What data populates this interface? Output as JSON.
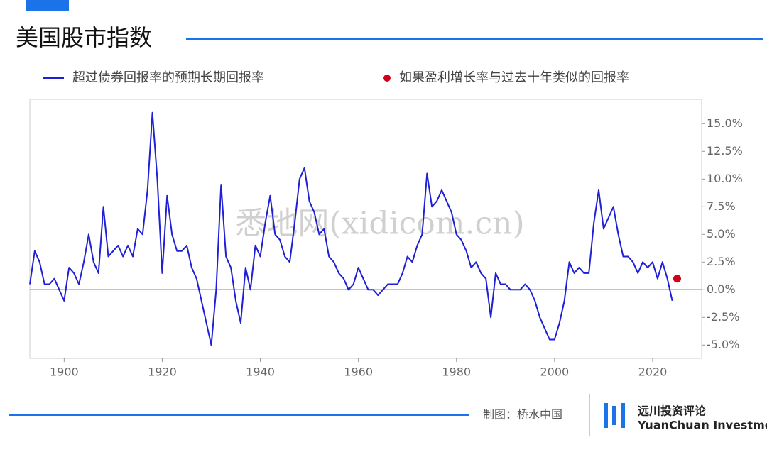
{
  "title": "美国股市指数",
  "watermark": "悉地网(xidicom.cn)",
  "footer": {
    "credit": "制图：桥水中国",
    "brand": "远川投资评论",
    "brand_en": "YuanChuan Investment Review"
  },
  "chart_data": {
    "type": "line",
    "xlim": [
      1893,
      2030
    ],
    "xticks": [
      1900,
      1920,
      1940,
      1960,
      1980,
      2000,
      2020
    ],
    "ylim": [
      -6.2,
      17.2
    ],
    "yticks": [
      {
        "value": -5,
        "label": "-5.0%"
      },
      {
        "value": -2.5,
        "label": "-2.5%"
      },
      {
        "value": 0,
        "label": "0.0%"
      },
      {
        "value": 2.5,
        "label": "2.5%"
      },
      {
        "value": 5,
        "label": "5.0%"
      },
      {
        "value": 7.5,
        "label": "7.5%"
      },
      {
        "value": 10,
        "label": "10.0%"
      },
      {
        "value": 12.5,
        "label": "12.5%"
      },
      {
        "value": 15,
        "label": "15.0%"
      }
    ],
    "series": [
      {
        "name": "超过债券回报率的预期长期回报率",
        "color": "#1f1fd6",
        "style": "line",
        "x": [
          1893,
          1894,
          1895,
          1896,
          1897,
          1898,
          1899,
          1900,
          1901,
          1902,
          1903,
          1904,
          1905,
          1906,
          1907,
          1908,
          1909,
          1910,
          1911,
          1912,
          1913,
          1914,
          1915,
          1916,
          1917,
          1918,
          1919,
          1920,
          1921,
          1922,
          1923,
          1924,
          1925,
          1926,
          1927,
          1928,
          1929,
          1930,
          1931,
          1932,
          1933,
          1934,
          1935,
          1936,
          1937,
          1938,
          1939,
          1940,
          1941,
          1942,
          1943,
          1944,
          1945,
          1946,
          1947,
          1948,
          1949,
          1950,
          1951,
          1952,
          1953,
          1954,
          1955,
          1956,
          1957,
          1958,
          1959,
          1960,
          1961,
          1962,
          1963,
          1964,
          1965,
          1966,
          1967,
          1968,
          1969,
          1970,
          1971,
          1972,
          1973,
          1974,
          1975,
          1976,
          1977,
          1978,
          1979,
          1980,
          1981,
          1982,
          1983,
          1984,
          1985,
          1986,
          1987,
          1988,
          1989,
          1990,
          1991,
          1992,
          1993,
          1994,
          1995,
          1996,
          1997,
          1998,
          1999,
          2000,
          2001,
          2002,
          2003,
          2004,
          2005,
          2006,
          2007,
          2008,
          2009,
          2010,
          2011,
          2012,
          2013,
          2014,
          2015,
          2016,
          2017,
          2018,
          2019,
          2020,
          2021,
          2022,
          2023,
          2024
        ],
        "values": [
          0.5,
          3.5,
          2.5,
          0.5,
          0.5,
          1,
          0,
          -1,
          2,
          1.5,
          0.5,
          2.5,
          5,
          2.5,
          1.5,
          7.5,
          3,
          3.5,
          4,
          3,
          4,
          3,
          5.5,
          5,
          9,
          16,
          10,
          1.5,
          8.5,
          5,
          3.5,
          3.5,
          4,
          2,
          1,
          -1,
          -3,
          -5,
          0,
          9.5,
          3,
          2,
          -1,
          -3,
          2,
          0,
          4,
          3,
          6,
          8.5,
          5,
          4.5,
          3,
          2.5,
          6,
          10,
          11,
          8,
          7,
          5,
          5.5,
          3,
          2.5,
          1.5,
          1,
          0,
          0.5,
          2,
          1,
          0,
          0,
          -0.5,
          0,
          0.5,
          0.5,
          0.5,
          1.5,
          3,
          2.5,
          4,
          5,
          10.5,
          7.5,
          8,
          9,
          8,
          7,
          5,
          4.5,
          3.5,
          2,
          2.5,
          1.5,
          1,
          -2.5,
          1.5,
          0.5,
          0.5,
          0,
          0,
          0,
          0.5,
          0,
          -1,
          -2.5,
          -3.5,
          -4.5,
          -4.5,
          -3,
          -1,
          2.5,
          1.5,
          2,
          1.5,
          1.5,
          6,
          9,
          5.5,
          6.5,
          7.5,
          5,
          3,
          3,
          2.5,
          1.5,
          2.5,
          2,
          2.5,
          1,
          2.5,
          1,
          -1
        ]
      },
      {
        "name": "如果盈利增长率与过去十年类似的回报率",
        "color": "#d0021b",
        "style": "point",
        "x": [
          2025
        ],
        "values": [
          1
        ]
      }
    ]
  }
}
